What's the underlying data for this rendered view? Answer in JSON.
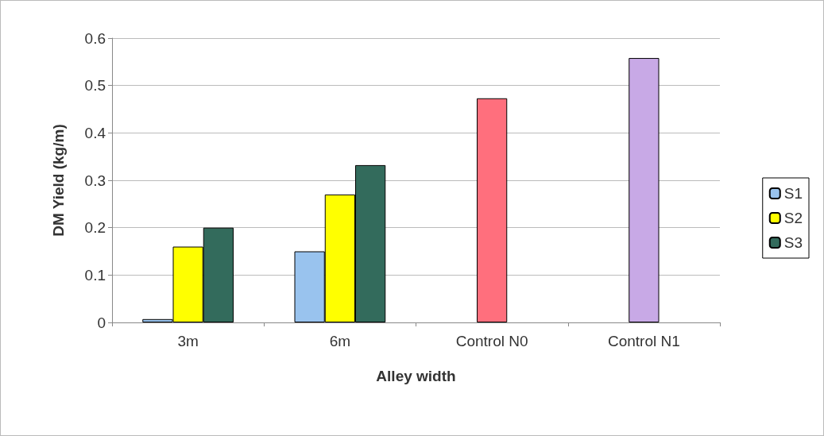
{
  "chart_data": {
    "type": "bar",
    "xlabel": "Alley width",
    "ylabel": "DM Yield (kg/m)",
    "categories": [
      "3m",
      "6m",
      "Control N0",
      "Control N1"
    ],
    "series": [
      {
        "name": "S1",
        "color": "#99c3ee",
        "values": [
          0.007,
          0.15,
          null,
          null
        ]
      },
      {
        "name": "S2",
        "color": "#ffff00",
        "values": [
          0.16,
          0.27,
          0.473,
          0.558
        ],
        "colors": [
          "#ffff00",
          "#ffff00",
          "#ff6f7d",
          "#c8a9e6"
        ]
      },
      {
        "name": "S3",
        "color": "#336b5c",
        "values": [
          0.2,
          0.332,
          null,
          null
        ]
      }
    ],
    "ylim": [
      0,
      0.6
    ],
    "yticks": [
      0,
      0.1,
      0.2,
      0.3,
      0.4,
      0.5,
      0.6
    ],
    "grid": "y",
    "legend": "right"
  }
}
